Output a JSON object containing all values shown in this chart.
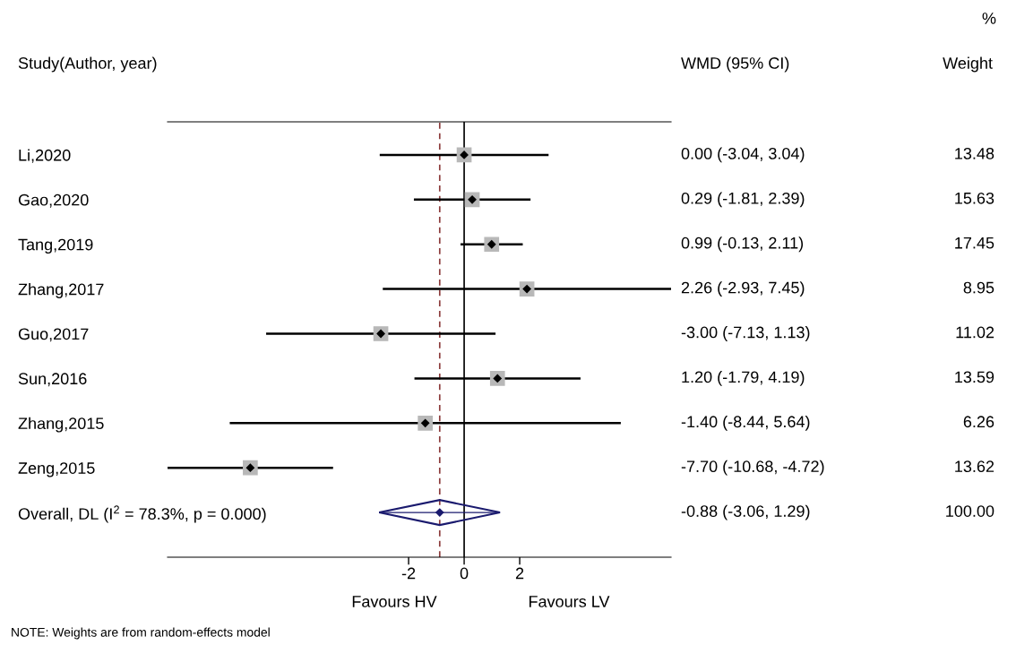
{
  "chart_data": {
    "type": "scatter",
    "orientation": "horizontal",
    "ylabel": "Study(Author, year)",
    "categories": [
      "Li,2020",
      "Gao,2020",
      "Tang,2019",
      "Zhang,2017",
      "Guo,2017",
      "Sun,2016",
      "Zhang,2015",
      "Zeng,2015",
      "Overall, DL (I$^{2}$ = 78.3%, p = 0.000)"
    ],
    "series": [
      {
        "marker": "square",
        "color": "#b8b8b8",
        "values": [
          0.0,
          0.29,
          0.99,
          2.26,
          -3.0,
          1.2,
          -1.4,
          -7.7,
          null
        ],
        "errors": [
          [
            -3.04,
            3.04
          ],
          [
            -1.81,
            2.39
          ],
          [
            -0.13,
            2.11
          ],
          [
            -2.93,
            7.45
          ],
          [
            -7.13,
            1.13
          ],
          [
            -1.79,
            4.19
          ],
          [
            -8.44,
            5.64
          ],
          [
            -10.68,
            -4.72
          ],
          null
        ]
      },
      {
        "marker": "diamond",
        "color": "#1a1a6e",
        "values": [
          null,
          null,
          null,
          null,
          null,
          null,
          null,
          null,
          -0.88
        ],
        "errors": [
          null,
          null,
          null,
          null,
          null,
          null,
          null,
          null,
          [
            -3.06,
            1.29
          ]
        ]
      }
    ],
    "value_labels": [
      "0.00 (-3.04, 3.04)",
      "0.29 (-1.81, 2.39)",
      "0.99 (-0.13, 2.11)",
      "2.26 (-2.93, 7.45)",
      "-3.00 (-7.13, 1.13)",
      "1.20 (-1.79, 4.19)",
      "-1.40 (-8.44, 5.64)",
      "-7.70 (-10.68, -4.72)",
      "-0.88 (-3.06, 1.29)"
    ],
    "annotations": [
      "WMD (95% CI)",
      "%",
      "Weight",
      "13.48",
      "15.63",
      "17.45",
      "8.95",
      "11.02",
      "13.59",
      "6.26",
      "13.62",
      "100.00",
      "Favours HV",
      "Favours LV",
      "NOTE: Weights are from random-effects model"
    ],
    "xlim": [
      -10.68,
      7.45
    ],
    "xticks": [
      -2,
      0,
      2
    ],
    "ref_lines": [
      {
        "axis": "x",
        "value": 0,
        "color": "#000000",
        "line_style": "solid"
      },
      {
        "axis": "x",
        "value": -0.88,
        "color": "#8b3a3a",
        "line_style": "dashed"
      }
    ],
    "grid": false
  }
}
